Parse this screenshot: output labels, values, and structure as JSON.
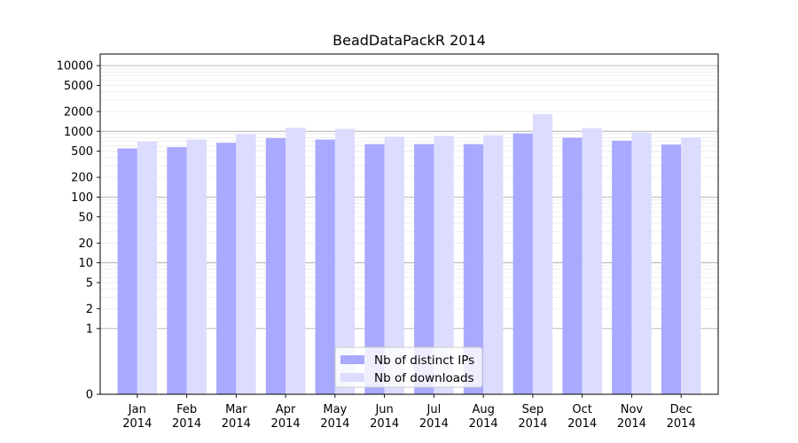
{
  "chart_data": {
    "type": "bar",
    "title": "BeadDataPackR 2014",
    "xlabel": "",
    "ylabel": "",
    "y_scale": "symlog",
    "ylim": [
      0,
      15000
    ],
    "y_ticks": [
      0,
      1,
      2,
      5,
      10,
      20,
      50,
      100,
      200,
      500,
      1000,
      2000,
      5000,
      10000
    ],
    "grid": "horizontal (major and minor)",
    "legend_position": "bottom-center",
    "categories": [
      "Jan\n2014",
      "Feb\n2014",
      "Mar\n2014",
      "Apr\n2014",
      "May\n2014",
      "Jun\n2014",
      "Jul\n2014",
      "Aug\n2014",
      "Sep\n2014",
      "Oct\n2014",
      "Nov\n2014",
      "Dec\n2014"
    ],
    "series": [
      {
        "name": "Nb of distinct IPs",
        "color": "#a9a9ff",
        "values": [
          550,
          575,
          670,
          790,
          750,
          640,
          640,
          640,
          930,
          800,
          720,
          630
        ]
      },
      {
        "name": "Nb of downloads",
        "color": "#dcdcff",
        "values": [
          700,
          750,
          910,
          1130,
          1090,
          830,
          850,
          870,
          1830,
          1120,
          960,
          810
        ]
      }
    ]
  }
}
